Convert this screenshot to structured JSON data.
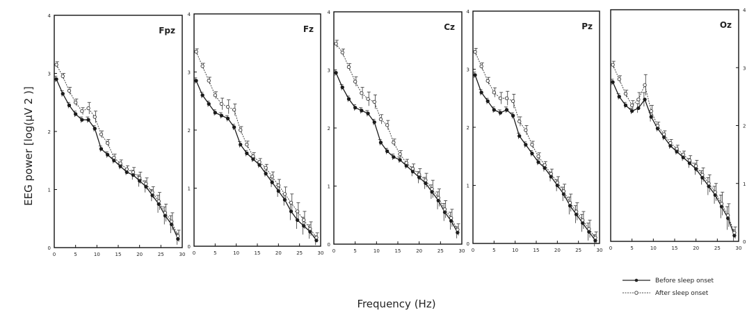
{
  "chart_data": {
    "type": "line",
    "ylabel": "EEG power [log(μV 2 )]",
    "xlabel": "Frequency (Hz)",
    "legend": {
      "placement": "bottom-right",
      "entries": [
        "Before sleep onset",
        "After sleep onset"
      ]
    },
    "panels": [
      {
        "label": "Fpz",
        "xlim": [
          0,
          30
        ],
        "ylim": [
          0,
          4
        ],
        "xticks": [
          "0",
          "5",
          "10",
          "15",
          "20",
          "25",
          "30"
        ],
        "yticks": [
          "0",
          "1",
          "2",
          "3",
          "4"
        ],
        "x": [
          0.5,
          2,
          3.5,
          5,
          6.5,
          8,
          9.5,
          11,
          12.5,
          14,
          15.5,
          17,
          18.5,
          20,
          21.5,
          23,
          24.5,
          26,
          27.5,
          29
        ],
        "series": [
          {
            "name": "Before sleep onset",
            "marker": "filled",
            "values": [
              2.9,
              2.65,
              2.45,
              2.3,
              2.2,
              2.2,
              2.05,
              1.7,
              1.6,
              1.5,
              1.4,
              1.3,
              1.25,
              1.15,
              1.05,
              0.9,
              0.75,
              0.55,
              0.4,
              0.15
            ],
            "errors": [
              0.05,
              0.05,
              0.05,
              0.05,
              0.05,
              0.05,
              0.05,
              0.05,
              0.05,
              0.05,
              0.05,
              0.05,
              0.08,
              0.1,
              0.1,
              0.1,
              0.15,
              0.15,
              0.15,
              0.1
            ]
          },
          {
            "name": "After sleep onset",
            "marker": "open",
            "values": [
              3.15,
              2.95,
              2.7,
              2.5,
              2.35,
              2.4,
              2.25,
              1.95,
              1.8,
              1.55,
              1.45,
              1.35,
              1.3,
              1.2,
              1.1,
              0.95,
              0.8,
              0.6,
              0.45,
              0.2
            ],
            "errors": [
              0.05,
              0.05,
              0.06,
              0.06,
              0.06,
              0.1,
              0.1,
              0.06,
              0.06,
              0.06,
              0.06,
              0.06,
              0.08,
              0.1,
              0.1,
              0.1,
              0.15,
              0.15,
              0.15,
              0.1
            ]
          }
        ]
      },
      {
        "label": "Fz",
        "xlim": [
          0,
          30
        ],
        "ylim": [
          0,
          4
        ],
        "xticks": [
          "0",
          "5",
          "10",
          "15",
          "20",
          "25",
          "30"
        ],
        "yticks": [
          "0",
          "1",
          "2",
          "3",
          "4"
        ],
        "x": [
          0.5,
          2,
          3.5,
          5,
          6.5,
          8,
          9.5,
          11,
          12.5,
          14,
          15.5,
          17,
          18.5,
          20,
          21.5,
          23,
          24.5,
          26,
          27.5,
          29
        ],
        "series": [
          {
            "name": "Before sleep onset",
            "marker": "filled",
            "values": [
              2.85,
              2.6,
              2.45,
              2.3,
              2.25,
              2.2,
              2.05,
              1.75,
              1.6,
              1.5,
              1.4,
              1.25,
              1.1,
              0.95,
              0.8,
              0.6,
              0.45,
              0.35,
              0.25,
              0.1
            ],
            "errors": [
              0.05,
              0.05,
              0.05,
              0.05,
              0.05,
              0.05,
              0.05,
              0.05,
              0.05,
              0.05,
              0.05,
              0.05,
              0.08,
              0.1,
              0.1,
              0.15,
              0.15,
              0.15,
              0.12,
              0.08
            ]
          },
          {
            "name": "After sleep onset",
            "marker": "open",
            "values": [
              3.35,
              3.1,
              2.85,
              2.6,
              2.45,
              2.4,
              2.35,
              2.0,
              1.75,
              1.55,
              1.45,
              1.35,
              1.2,
              1.05,
              0.9,
              0.75,
              0.6,
              0.45,
              0.3,
              0.15
            ],
            "errors": [
              0.05,
              0.05,
              0.06,
              0.06,
              0.1,
              0.12,
              0.1,
              0.06,
              0.06,
              0.06,
              0.06,
              0.06,
              0.08,
              0.1,
              0.12,
              0.15,
              0.15,
              0.15,
              0.12,
              0.08
            ]
          }
        ]
      },
      {
        "label": "Cz",
        "xlim": [
          0,
          30
        ],
        "ylim": [
          0,
          4
        ],
        "xticks": [
          "0",
          "5",
          "10",
          "15",
          "20",
          "25",
          "30"
        ],
        "yticks": [
          "0",
          "1",
          "2",
          "3",
          "4"
        ],
        "x": [
          0.5,
          2,
          3.5,
          5,
          6.5,
          8,
          9.5,
          11,
          12.5,
          14,
          15.5,
          17,
          18.5,
          20,
          21.5,
          23,
          24.5,
          26,
          27.5,
          29
        ],
        "series": [
          {
            "name": "Before sleep onset",
            "marker": "filled",
            "values": [
              2.95,
              2.7,
              2.5,
              2.35,
              2.3,
              2.25,
              2.1,
              1.75,
              1.6,
              1.5,
              1.45,
              1.35,
              1.25,
              1.15,
              1.05,
              0.9,
              0.75,
              0.55,
              0.4,
              0.2
            ],
            "errors": [
              0.05,
              0.05,
              0.05,
              0.05,
              0.05,
              0.05,
              0.05,
              0.05,
              0.05,
              0.05,
              0.05,
              0.05,
              0.08,
              0.1,
              0.1,
              0.12,
              0.15,
              0.15,
              0.15,
              0.1
            ]
          },
          {
            "name": "After sleep onset",
            "marker": "open",
            "values": [
              3.45,
              3.3,
              3.05,
              2.8,
              2.6,
              2.5,
              2.45,
              2.15,
              2.05,
              1.75,
              1.55,
              1.4,
              1.3,
              1.2,
              1.1,
              0.95,
              0.8,
              0.6,
              0.45,
              0.25
            ],
            "errors": [
              0.06,
              0.06,
              0.06,
              0.08,
              0.1,
              0.12,
              0.12,
              0.08,
              0.08,
              0.06,
              0.06,
              0.06,
              0.08,
              0.1,
              0.12,
              0.15,
              0.15,
              0.15,
              0.15,
              0.1
            ]
          }
        ]
      },
      {
        "label": "Pz",
        "xlim": [
          0,
          30
        ],
        "ylim": [
          0,
          4
        ],
        "xticks": [
          "0",
          "5",
          "10",
          "15",
          "20",
          "25",
          "30"
        ],
        "yticks": [
          "0",
          "1",
          "2",
          "3",
          "4"
        ],
        "x": [
          0.5,
          2,
          3.5,
          5,
          6.5,
          8,
          9.5,
          11,
          12.5,
          14,
          15.5,
          17,
          18.5,
          20,
          21.5,
          23,
          24.5,
          26,
          27.5,
          29
        ],
        "series": [
          {
            "name": "Before sleep onset",
            "marker": "filled",
            "values": [
              2.9,
              2.6,
              2.45,
              2.3,
              2.25,
              2.3,
              2.2,
              1.85,
              1.7,
              1.55,
              1.4,
              1.3,
              1.15,
              1.0,
              0.85,
              0.65,
              0.5,
              0.35,
              0.2,
              0.05
            ],
            "errors": [
              0.05,
              0.05,
              0.05,
              0.05,
              0.05,
              0.05,
              0.05,
              0.05,
              0.05,
              0.05,
              0.05,
              0.06,
              0.08,
              0.1,
              0.12,
              0.15,
              0.15,
              0.15,
              0.15,
              0.1
            ]
          },
          {
            "name": "After sleep onset",
            "marker": "open",
            "values": [
              3.3,
              3.05,
              2.8,
              2.6,
              2.5,
              2.5,
              2.45,
              2.1,
              1.95,
              1.7,
              1.5,
              1.35,
              1.2,
              1.05,
              0.9,
              0.7,
              0.55,
              0.4,
              0.25,
              0.1
            ],
            "errors": [
              0.06,
              0.06,
              0.06,
              0.08,
              0.1,
              0.12,
              0.12,
              0.08,
              0.08,
              0.06,
              0.06,
              0.06,
              0.08,
              0.1,
              0.12,
              0.15,
              0.15,
              0.15,
              0.15,
              0.1
            ]
          }
        ]
      },
      {
        "label": "Oz",
        "xlim": [
          0,
          30
        ],
        "ylim": [
          0,
          4
        ],
        "xticks": [
          "0",
          "5",
          "10",
          "15",
          "20",
          "25",
          "30"
        ],
        "yticks": [
          "0",
          "1",
          "2",
          "3",
          "4"
        ],
        "x": [
          0.5,
          2,
          3.5,
          5,
          6.5,
          8,
          9.5,
          11,
          12.5,
          14,
          15.5,
          17,
          18.5,
          20,
          21.5,
          23,
          24.5,
          26,
          27.5,
          29
        ],
        "series": [
          {
            "name": "Before sleep onset",
            "marker": "filled",
            "values": [
              2.75,
              2.5,
              2.35,
              2.25,
              2.3,
              2.45,
              2.15,
              1.95,
              1.8,
              1.65,
              1.55,
              1.45,
              1.35,
              1.25,
              1.1,
              0.95,
              0.8,
              0.6,
              0.4,
              0.1
            ],
            "errors": [
              0.05,
              0.05,
              0.05,
              0.05,
              0.08,
              0.12,
              0.08,
              0.05,
              0.05,
              0.05,
              0.05,
              0.06,
              0.08,
              0.1,
              0.12,
              0.15,
              0.15,
              0.2,
              0.2,
              0.1
            ]
          },
          {
            "name": "After sleep onset",
            "marker": "open",
            "values": [
              3.05,
              2.8,
              2.55,
              2.35,
              2.45,
              2.7,
              2.25,
              2.0,
              1.85,
              1.7,
              1.6,
              1.5,
              1.4,
              1.3,
              1.15,
              1.0,
              0.85,
              0.65,
              0.45,
              0.15
            ],
            "errors": [
              0.06,
              0.06,
              0.06,
              0.08,
              0.12,
              0.18,
              0.1,
              0.06,
              0.06,
              0.06,
              0.06,
              0.06,
              0.08,
              0.1,
              0.12,
              0.15,
              0.15,
              0.2,
              0.2,
              0.1
            ]
          }
        ]
      }
    ]
  }
}
